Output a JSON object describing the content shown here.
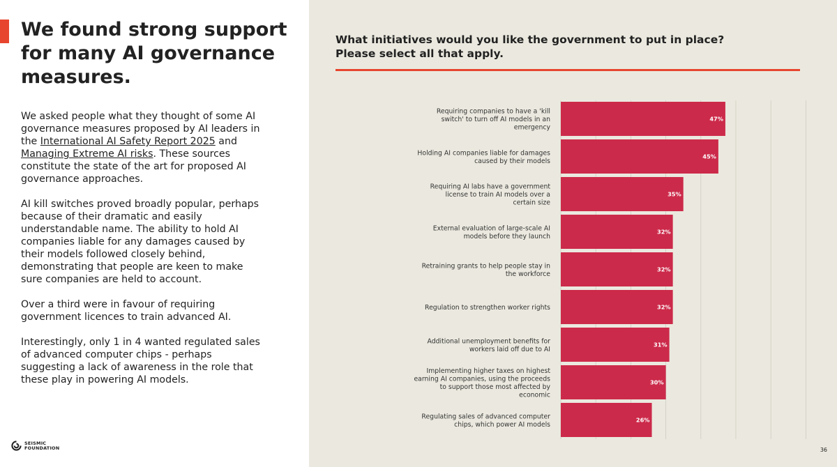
{
  "left": {
    "title": "We found strong support for many AI governance measures.",
    "para1_before": "We asked people what they thought of some AI governance measures proposed by AI leaders in the ",
    "link1": "International AI Safety Report 2025",
    "para1_mid": " and ",
    "link2": "Managing Extreme AI risks",
    "para1_after": ". These sources constitute the state of the art for proposed AI governance approaches.",
    "para2": "AI kill switches proved broadly popular, perhaps because of their dramatic and easily understandable name. The ability to hold AI companies liable for any damages caused by their models followed closely behind, demonstrating that people are keen to make sure companies are held to account.",
    "para3": "Over a third were in favour of requiring government licences to train advanced AI.",
    "para4": "Interestingly, only 1 in 4 wanted regulated sales of advanced computer chips - perhaps suggesting a lack of awareness in the role that these play in powering AI models."
  },
  "logo": {
    "line1": "SEISMIC",
    "line2": "FOUNDATION"
  },
  "page_number": "36",
  "colors": {
    "accent": "#e8452e",
    "bar": "#cc2a4a",
    "panel": "#ebe9df"
  },
  "chart_data": {
    "type": "bar",
    "orientation": "horizontal",
    "title_line1": "What initiatives would you like the government to put in place?",
    "title_line2": "Please select all that apply.",
    "xlim": [
      0,
      100
    ],
    "categories": [
      [
        "Requiring companies to have a 'kill",
        "switch' to turn off AI models in an",
        "emergency"
      ],
      [
        "Holding AI companies liable for damages",
        "caused by their models"
      ],
      [
        "Requiring AI labs have a government",
        "license to train AI models over a",
        "certain size"
      ],
      [
        "External evaluation of large-scale AI",
        "models before they launch"
      ],
      [
        "Retraining grants to help people stay in",
        "the workforce"
      ],
      [
        "Regulation to strengthen worker rights"
      ],
      [
        "Additional unemployment benefits for",
        "workers laid off due to AI"
      ],
      [
        "Implementing higher taxes on highest",
        "earning AI companies, using the proceeds",
        "to support those most affected by",
        "economic"
      ],
      [
        "Regulating sales of advanced computer",
        "chips, which power AI models"
      ]
    ],
    "values": [
      47,
      45,
      35,
      32,
      32,
      32,
      31,
      30,
      26
    ],
    "value_labels": [
      "47%",
      "45%",
      "35%",
      "32%",
      "32%",
      "32%",
      "31%",
      "30%",
      "26%"
    ]
  }
}
